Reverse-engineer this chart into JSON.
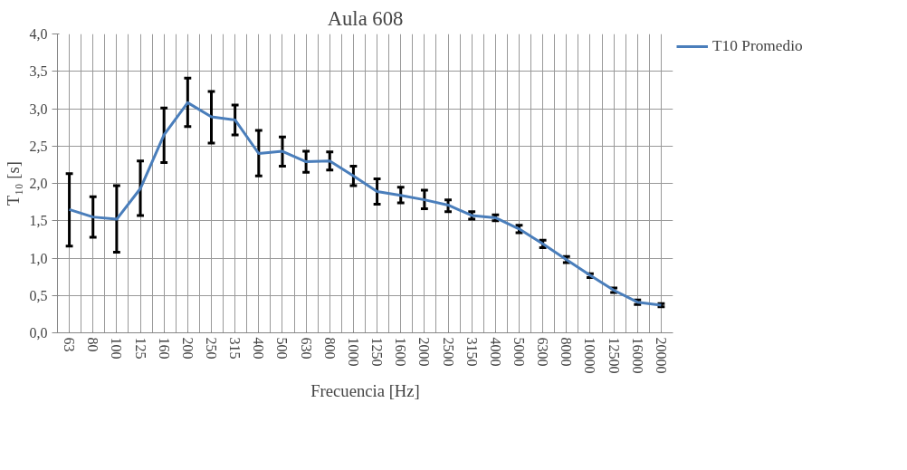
{
  "chart_data": {
    "type": "line",
    "title": "Aula 608",
    "xlabel": "Frecuencia [Hz]",
    "ylabel": "T₁₀ [s]",
    "categories": [
      "63",
      "80",
      "100",
      "125",
      "160",
      "200",
      "250",
      "315",
      "400",
      "500",
      "630",
      "800",
      "1000",
      "1250",
      "1600",
      "2000",
      "2500",
      "3150",
      "4000",
      "5000",
      "6300",
      "8000",
      "10000",
      "12500",
      "16000",
      "20000"
    ],
    "series": [
      {
        "name": "T10 Promedio",
        "color": "#4a7ebb",
        "values": [
          1.65,
          1.55,
          1.52,
          1.93,
          2.65,
          3.08,
          2.89,
          2.85,
          2.4,
          2.43,
          2.29,
          2.3,
          2.1,
          1.89,
          1.84,
          1.78,
          1.71,
          1.57,
          1.54,
          1.39,
          1.19,
          0.98,
          0.77,
          0.57,
          0.41,
          0.37
        ],
        "errors": [
          [
            1.16,
            2.13
          ],
          [
            1.28,
            1.82
          ],
          [
            1.08,
            1.97
          ],
          [
            1.57,
            2.3
          ],
          [
            2.28,
            3.01
          ],
          [
            2.76,
            3.41
          ],
          [
            2.54,
            3.23
          ],
          [
            2.65,
            3.05
          ],
          [
            2.1,
            2.71
          ],
          [
            2.23,
            2.62
          ],
          [
            2.15,
            2.43
          ],
          [
            2.18,
            2.42
          ],
          [
            1.97,
            2.23
          ],
          [
            1.72,
            2.06
          ],
          [
            1.74,
            1.95
          ],
          [
            1.66,
            1.91
          ],
          [
            1.62,
            1.78
          ],
          [
            1.52,
            1.62
          ],
          [
            1.5,
            1.58
          ],
          [
            1.34,
            1.44
          ],
          [
            1.14,
            1.24
          ],
          [
            0.94,
            1.02
          ],
          [
            0.74,
            0.79
          ],
          [
            0.54,
            0.6
          ],
          [
            0.38,
            0.44
          ],
          [
            0.35,
            0.39
          ]
        ]
      }
    ],
    "ylim": [
      0,
      4
    ],
    "yticks": [
      {
        "value": 0,
        "label": "0,0"
      },
      {
        "value": 0.5,
        "label": "0,5"
      },
      {
        "value": 1,
        "label": "1,0"
      },
      {
        "value": 1.5,
        "label": "1,5"
      },
      {
        "value": 2,
        "label": "2,0"
      },
      {
        "value": 2.5,
        "label": "2,5"
      },
      {
        "value": 3,
        "label": "3,0"
      },
      {
        "value": 3.5,
        "label": "3,5"
      },
      {
        "value": 4,
        "label": "4,0"
      }
    ],
    "grid": true,
    "legend": "right",
    "marker": "none",
    "line_style": "solid"
  }
}
